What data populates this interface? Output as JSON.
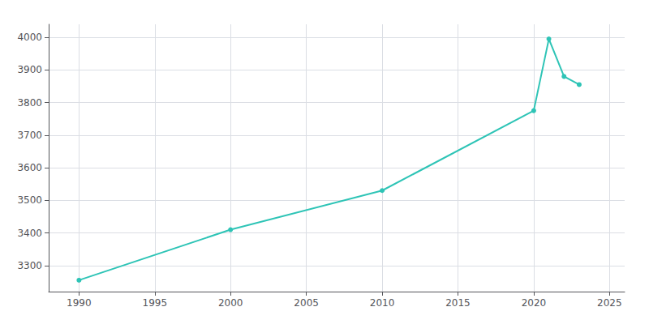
{
  "chart_data": {
    "type": "line",
    "x": [
      1990,
      2000,
      2010,
      2020,
      2021,
      2022,
      2023
    ],
    "values": [
      3255,
      3410,
      3530,
      3775,
      3995,
      3880,
      3855
    ],
    "color": "#2ec4b6",
    "marker": "circle",
    "xlim": [
      1988,
      2026
    ],
    "ylim": [
      3220,
      4040
    ],
    "xticks": [
      1990,
      1995,
      2000,
      2005,
      2010,
      2015,
      2020,
      2025
    ],
    "yticks": [
      3300,
      3400,
      3500,
      3600,
      3700,
      3800,
      3900,
      4000
    ],
    "grid": true
  }
}
